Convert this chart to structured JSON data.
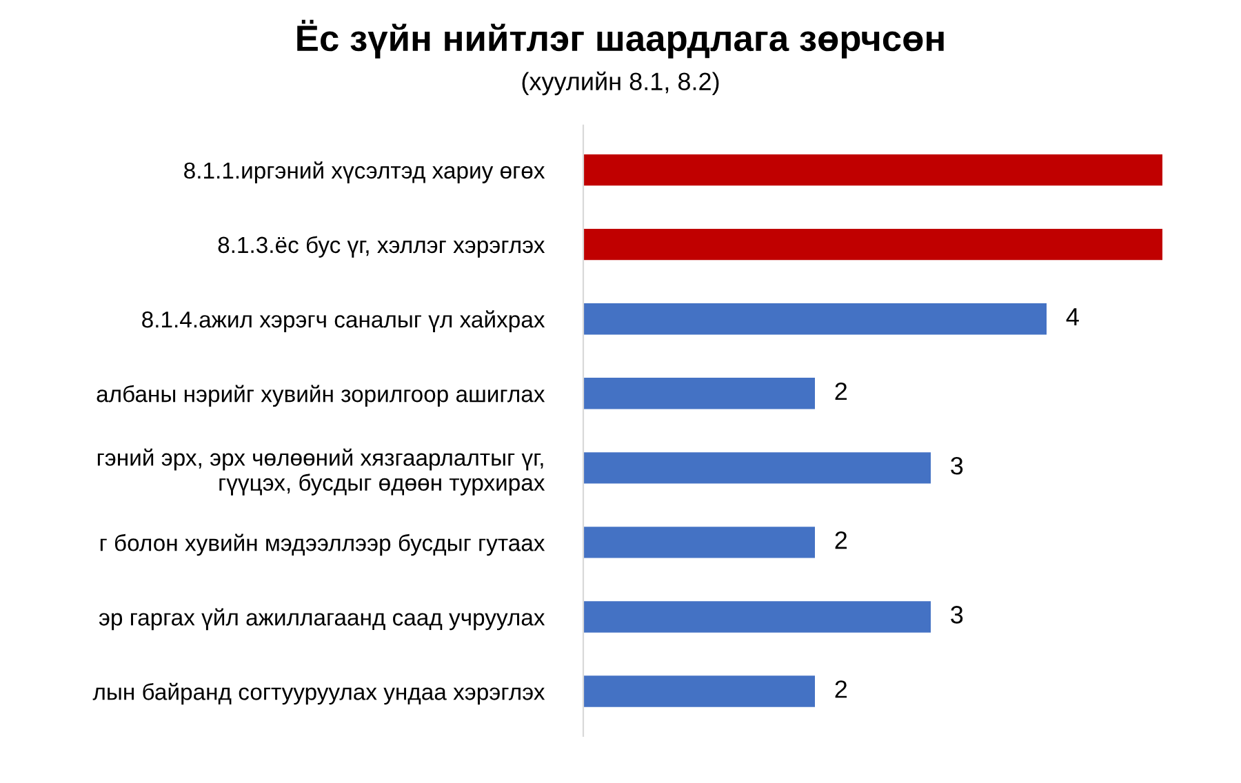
{
  "chart_data": {
    "type": "bar",
    "orientation": "horizontal",
    "title": "Ёс зүйн нийтлэг шаардлага зөрчсөн",
    "subtitle": "(хуулийн 8.1, 8.2)",
    "categories": [
      "8.1.1.иргэний хүсэлтэд хариу өгөх",
      "8.1.3.ёс бус үг, хэллэг хэрэглэх",
      "8.1.4.ажил хэрэгч саналыг үл хайхрах",
      "албаны нэрийг хувийн зорилгоор ашиглах",
      "гэний эрх, эрх чөлөөний хязгаарлалтыг үг,\nгүүцэх, бусдыг өдөөн турхирах",
      "г болон хувийн мэдээллээр бусдыг гутаах",
      "эр гаргах үйл ажиллагаанд саад учруулах",
      "лын байранд согтууруулах ундаа хэрэглэх"
    ],
    "values": [
      5,
      5,
      4,
      2,
      3,
      2,
      3,
      2
    ],
    "colors": [
      "#c00000",
      "#c00000",
      "#4472c4",
      "#4472c4",
      "#4472c4",
      "#4472c4",
      "#4472c4",
      "#4472c4"
    ],
    "value_labels": [
      null,
      null,
      "4",
      "2",
      "3",
      "2",
      "3",
      "2"
    ],
    "tick_labels": "y",
    "grid": false,
    "legend": false
  }
}
